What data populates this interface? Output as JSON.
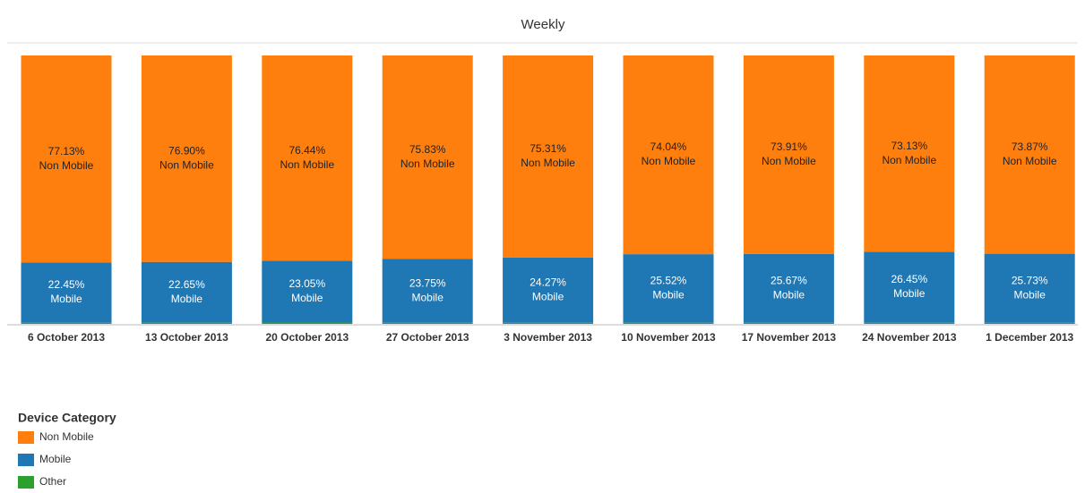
{
  "chart_data": {
    "type": "stacked_bar",
    "title": "Weekly",
    "categories": [
      "6 October 2013",
      "13 October 2013",
      "20 October 2013",
      "27 October 2013",
      "3 November 2013",
      "10 November 2013",
      "17 November 2013",
      "24 November 2013",
      "1 December 2013"
    ],
    "legend_title": "Device Category",
    "legend": "bottom-left",
    "series": [
      {
        "name": "Non Mobile",
        "color": "#ff7f0e",
        "label_color": "#222222",
        "values": [
          77.13,
          76.9,
          76.44,
          75.83,
          75.31,
          74.04,
          73.91,
          73.13,
          73.87
        ],
        "value_labels": [
          "77.13%",
          "76.90%",
          "76.44%",
          "75.83%",
          "75.31%",
          "74.04%",
          "73.91%",
          "73.13%",
          "73.87%"
        ]
      },
      {
        "name": "Mobile",
        "color": "#1f77b4",
        "label_color": "#ffffff",
        "values": [
          22.45,
          22.65,
          23.05,
          23.75,
          24.27,
          25.52,
          25.67,
          26.45,
          25.73
        ],
        "value_labels": [
          "22.45%",
          "22.65%",
          "23.05%",
          "23.75%",
          "24.27%",
          "25.52%",
          "25.67%",
          "26.45%",
          "25.73%"
        ]
      },
      {
        "name": "Other",
        "color": "#2ca02c",
        "values": [
          0.42,
          0.45,
          0.51,
          0.42,
          0.42,
          0.44,
          0.42,
          0.42,
          0.4
        ]
      }
    ]
  }
}
